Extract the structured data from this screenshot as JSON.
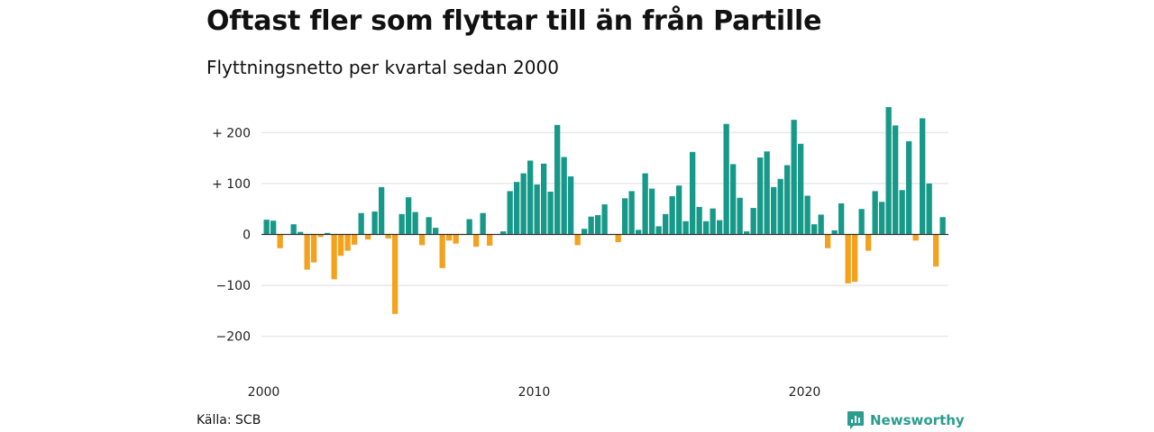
{
  "header": {
    "title": "Oftast fler som flyttar till än från Partille",
    "subtitle": "Flyttningsnetto per kvartal sedan 2000"
  },
  "footer": {
    "source": "Källa: SCB",
    "brand": "Newsworthy",
    "brand_icon": "newsworthy-logo-icon"
  },
  "colors": {
    "positive": "#17998a",
    "negative": "#f3a21e",
    "grid": "#dddddd",
    "zero_line": "#333333"
  },
  "chart_data": {
    "type": "bar",
    "title": "Oftast fler som flyttar till än från Partille",
    "subtitle": "Flyttningsnetto per kvartal sedan 2000",
    "x_ticks": [
      2000,
      2010,
      2020
    ],
    "x_tick_labels": [
      "2000",
      "2010",
      "2020"
    ],
    "y_ticks": [
      200,
      100,
      0,
      -100,
      -200
    ],
    "y_tick_labels": [
      "+ 200",
      "+ 100",
      "0",
      "−100",
      "−200"
    ],
    "ylim": [
      -200,
      250
    ],
    "grid": true,
    "start": "2000-Q1",
    "values": [
      29,
      27,
      -27,
      0,
      20,
      5,
      -69,
      -55,
      -5,
      3,
      -88,
      -42,
      -32,
      -20,
      42,
      -10,
      45,
      93,
      -8,
      -156,
      40,
      73,
      44,
      -21,
      34,
      13,
      -66,
      -12,
      -18,
      0,
      30,
      -24,
      42,
      -22,
      0,
      6,
      85,
      103,
      120,
      145,
      98,
      139,
      84,
      215,
      152,
      114,
      -21,
      11,
      35,
      38,
      59,
      0,
      -15,
      71,
      85,
      9,
      120,
      90,
      16,
      40,
      75,
      96,
      26,
      162,
      54,
      26,
      51,
      28,
      217,
      138,
      72,
      6,
      52,
      151,
      163,
      93,
      109,
      136,
      225,
      178,
      76,
      20,
      39,
      -27,
      8,
      61,
      -96,
      -93,
      50,
      -32,
      85,
      64,
      250,
      214,
      87,
      183,
      -12,
      228,
      100,
      -63,
      34
    ]
  }
}
